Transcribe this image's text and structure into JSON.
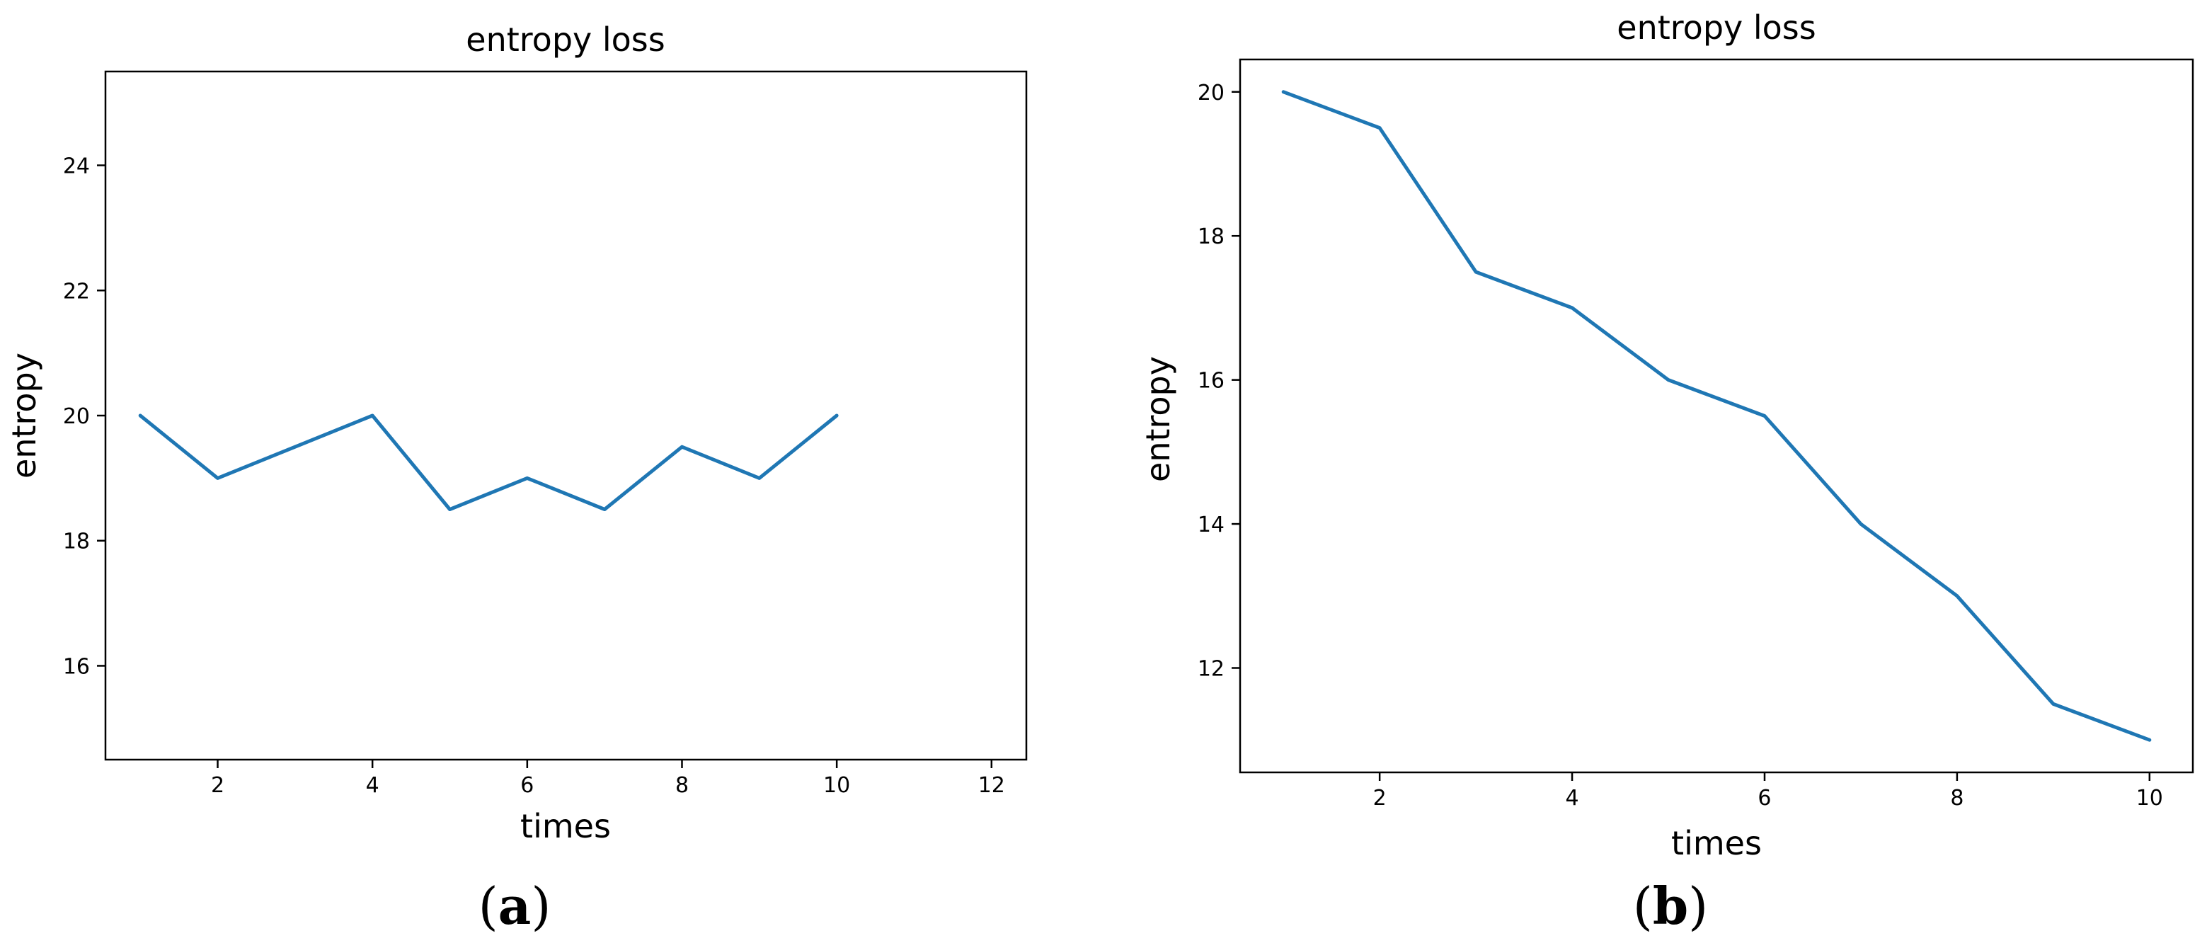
{
  "colors": {
    "series": "#1f77b4"
  },
  "chart_data": [
    {
      "type": "line",
      "panel_label": "a",
      "title": "entropy loss",
      "xlabel": "times",
      "ylabel": "entropy",
      "xlim": [
        0.55,
        12.45
      ],
      "ylim": [
        14.5,
        25.5
      ],
      "xticks": [
        2,
        4,
        6,
        8,
        10,
        12
      ],
      "yticks": [
        16,
        18,
        20,
        22,
        24
      ],
      "grid": false,
      "legend": "none",
      "x": [
        1,
        2,
        3,
        4,
        5,
        6,
        7,
        8,
        9,
        10
      ],
      "series": [
        {
          "values": [
            20,
            19,
            19.5,
            20,
            18.5,
            19,
            18.5,
            19.5,
            19,
            20
          ]
        }
      ]
    },
    {
      "type": "line",
      "panel_label": "b",
      "title": "entropy loss",
      "xlabel": "times",
      "ylabel": "entropy",
      "xlim": [
        0.55,
        10.45
      ],
      "ylim": [
        10.55,
        20.45
      ],
      "xticks": [
        2,
        4,
        6,
        8,
        10
      ],
      "yticks": [
        12,
        14,
        16,
        18,
        20
      ],
      "grid": false,
      "legend": "none",
      "x": [
        1,
        2,
        3,
        4,
        5,
        6,
        7,
        8,
        9,
        10
      ],
      "series": [
        {
          "values": [
            20,
            19.5,
            17.5,
            17,
            16,
            15.5,
            14,
            13,
            11.5,
            11
          ]
        }
      ]
    }
  ]
}
